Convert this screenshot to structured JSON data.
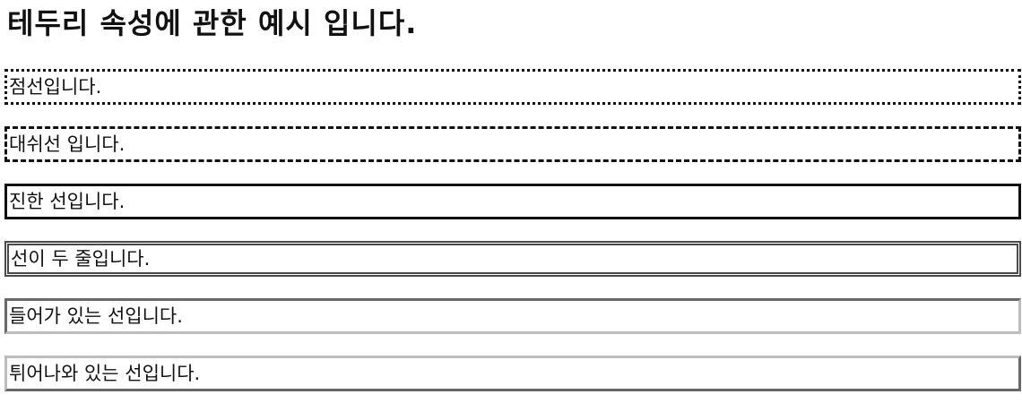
{
  "page": {
    "title": "테두리 속성에 관한 예시 입니다."
  },
  "boxes": [
    {
      "style": "dotted",
      "label": "점선입니다."
    },
    {
      "style": "dashed",
      "label": "대쉬선 입니다."
    },
    {
      "style": "solid",
      "label": "진한 선입니다."
    },
    {
      "style": "double",
      "label": "선이 두 줄입니다."
    },
    {
      "style": "inset",
      "label": "들어가 있는 선입니다."
    },
    {
      "style": "outset",
      "label": "튀어나와 있는 선입니다."
    }
  ],
  "colors": {
    "text": "#111111",
    "dark_border": "#111111",
    "double_border": "#4a4a4a",
    "light_border": "#bdbdbd",
    "background": "#ffffff"
  }
}
